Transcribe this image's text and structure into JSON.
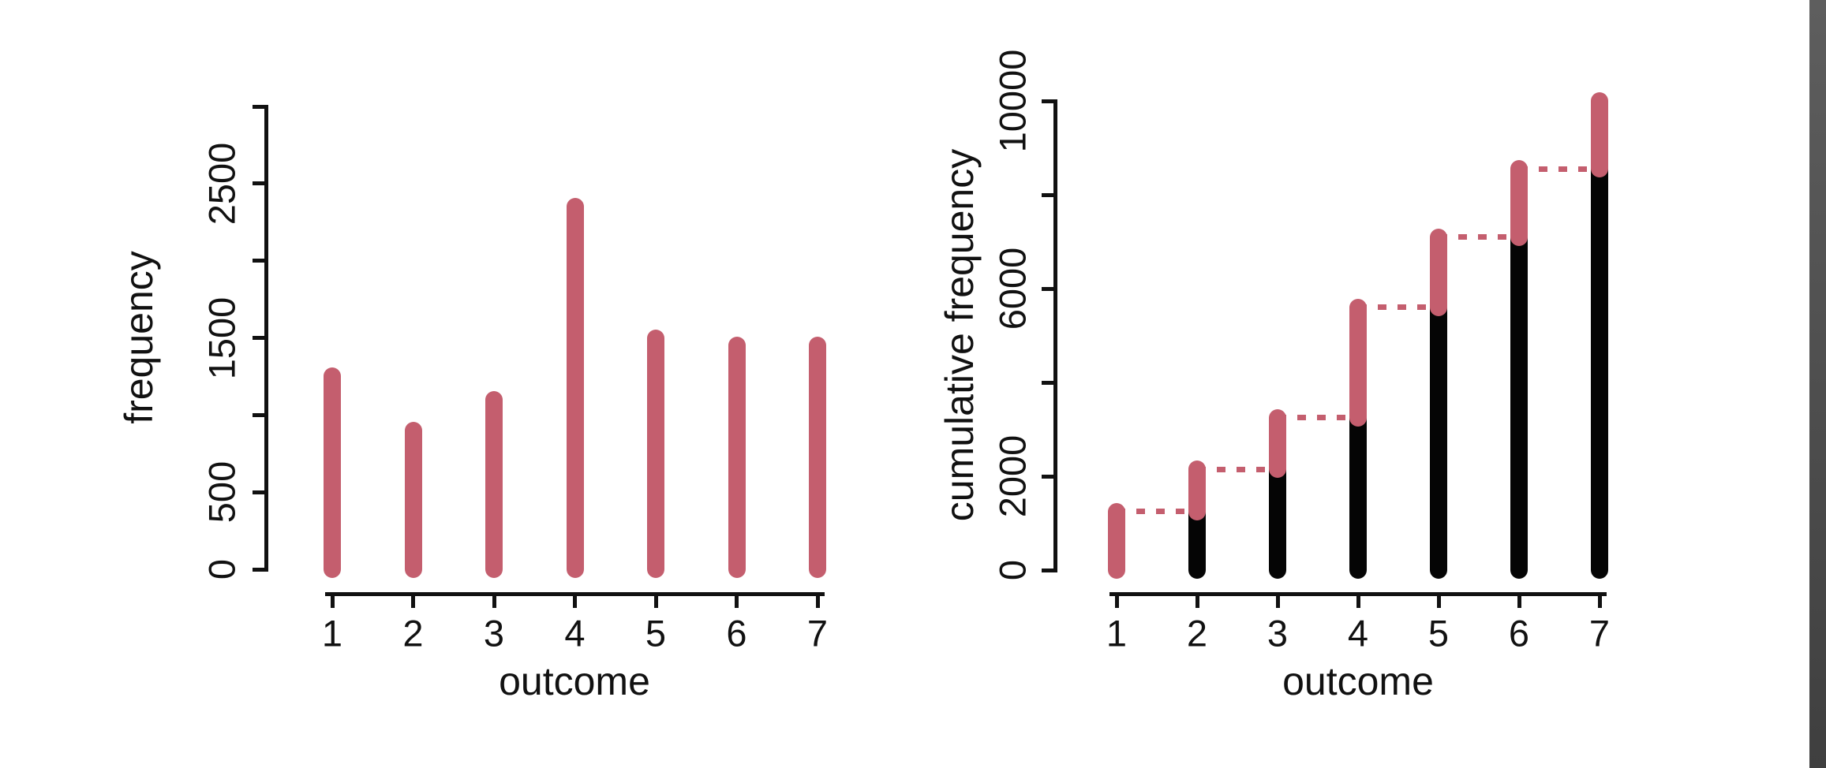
{
  "canvas": {
    "background": "#ffffff",
    "right_edge_band": {
      "color_top": "#5e5e5e",
      "color_bottom": "#3f3f3f"
    }
  },
  "chart_data": [
    {
      "type": "bar",
      "variant": "lollipop",
      "title": "",
      "xlabel": "outcome",
      "ylabel": "frequency",
      "categories": [
        "1",
        "2",
        "3",
        "4",
        "5",
        "6",
        "7"
      ],
      "values": [
        1250,
        900,
        1100,
        2350,
        1500,
        1450,
        1450
      ],
      "ylim": [
        0,
        3000
      ],
      "y_ticks": [
        0,
        500,
        1000,
        1500,
        2000,
        2500,
        3000
      ],
      "y_tick_labels": [
        {
          "value": 0,
          "text": "0"
        },
        {
          "value": 500,
          "text": "500"
        },
        {
          "value": 1500,
          "text": "1500"
        },
        {
          "value": 2500,
          "text": "2500"
        }
      ],
      "grid": false,
      "legend": null,
      "bar_color": "#c45e6e"
    },
    {
      "type": "bar",
      "variant": "cumulative-lollipop",
      "title": "",
      "xlabel": "outcome",
      "ylabel": "cumulative frequency",
      "categories": [
        "1",
        "2",
        "3",
        "4",
        "5",
        "6",
        "7"
      ],
      "cumulative_values": [
        1250,
        2150,
        3250,
        5600,
        7100,
        8550,
        10000
      ],
      "series": [
        {
          "name": "cumulative through previous outcome (black)",
          "values": [
            0,
            1250,
            2150,
            3250,
            5600,
            7100,
            8550
          ]
        },
        {
          "name": "frequency added at outcome (red)",
          "values": [
            1250,
            900,
            1100,
            2350,
            1500,
            1450,
            1450
          ]
        }
      ],
      "connectors": {
        "style": "dashed",
        "values": [
          1250,
          2150,
          3250,
          5600,
          7100,
          8550
        ]
      },
      "ylim": [
        0,
        10000
      ],
      "y_ticks": [
        0,
        2000,
        4000,
        6000,
        8000,
        10000
      ],
      "y_tick_labels": [
        {
          "value": 0,
          "text": "0"
        },
        {
          "value": 2000,
          "text": "2000"
        },
        {
          "value": 6000,
          "text": "6000"
        },
        {
          "value": 10000,
          "text": "10000"
        }
      ],
      "grid": false,
      "legend": null,
      "colors": {
        "base_bar": "#050505",
        "increment_bar": "#c45e6e",
        "connector": "#c45e6e"
      }
    }
  ]
}
